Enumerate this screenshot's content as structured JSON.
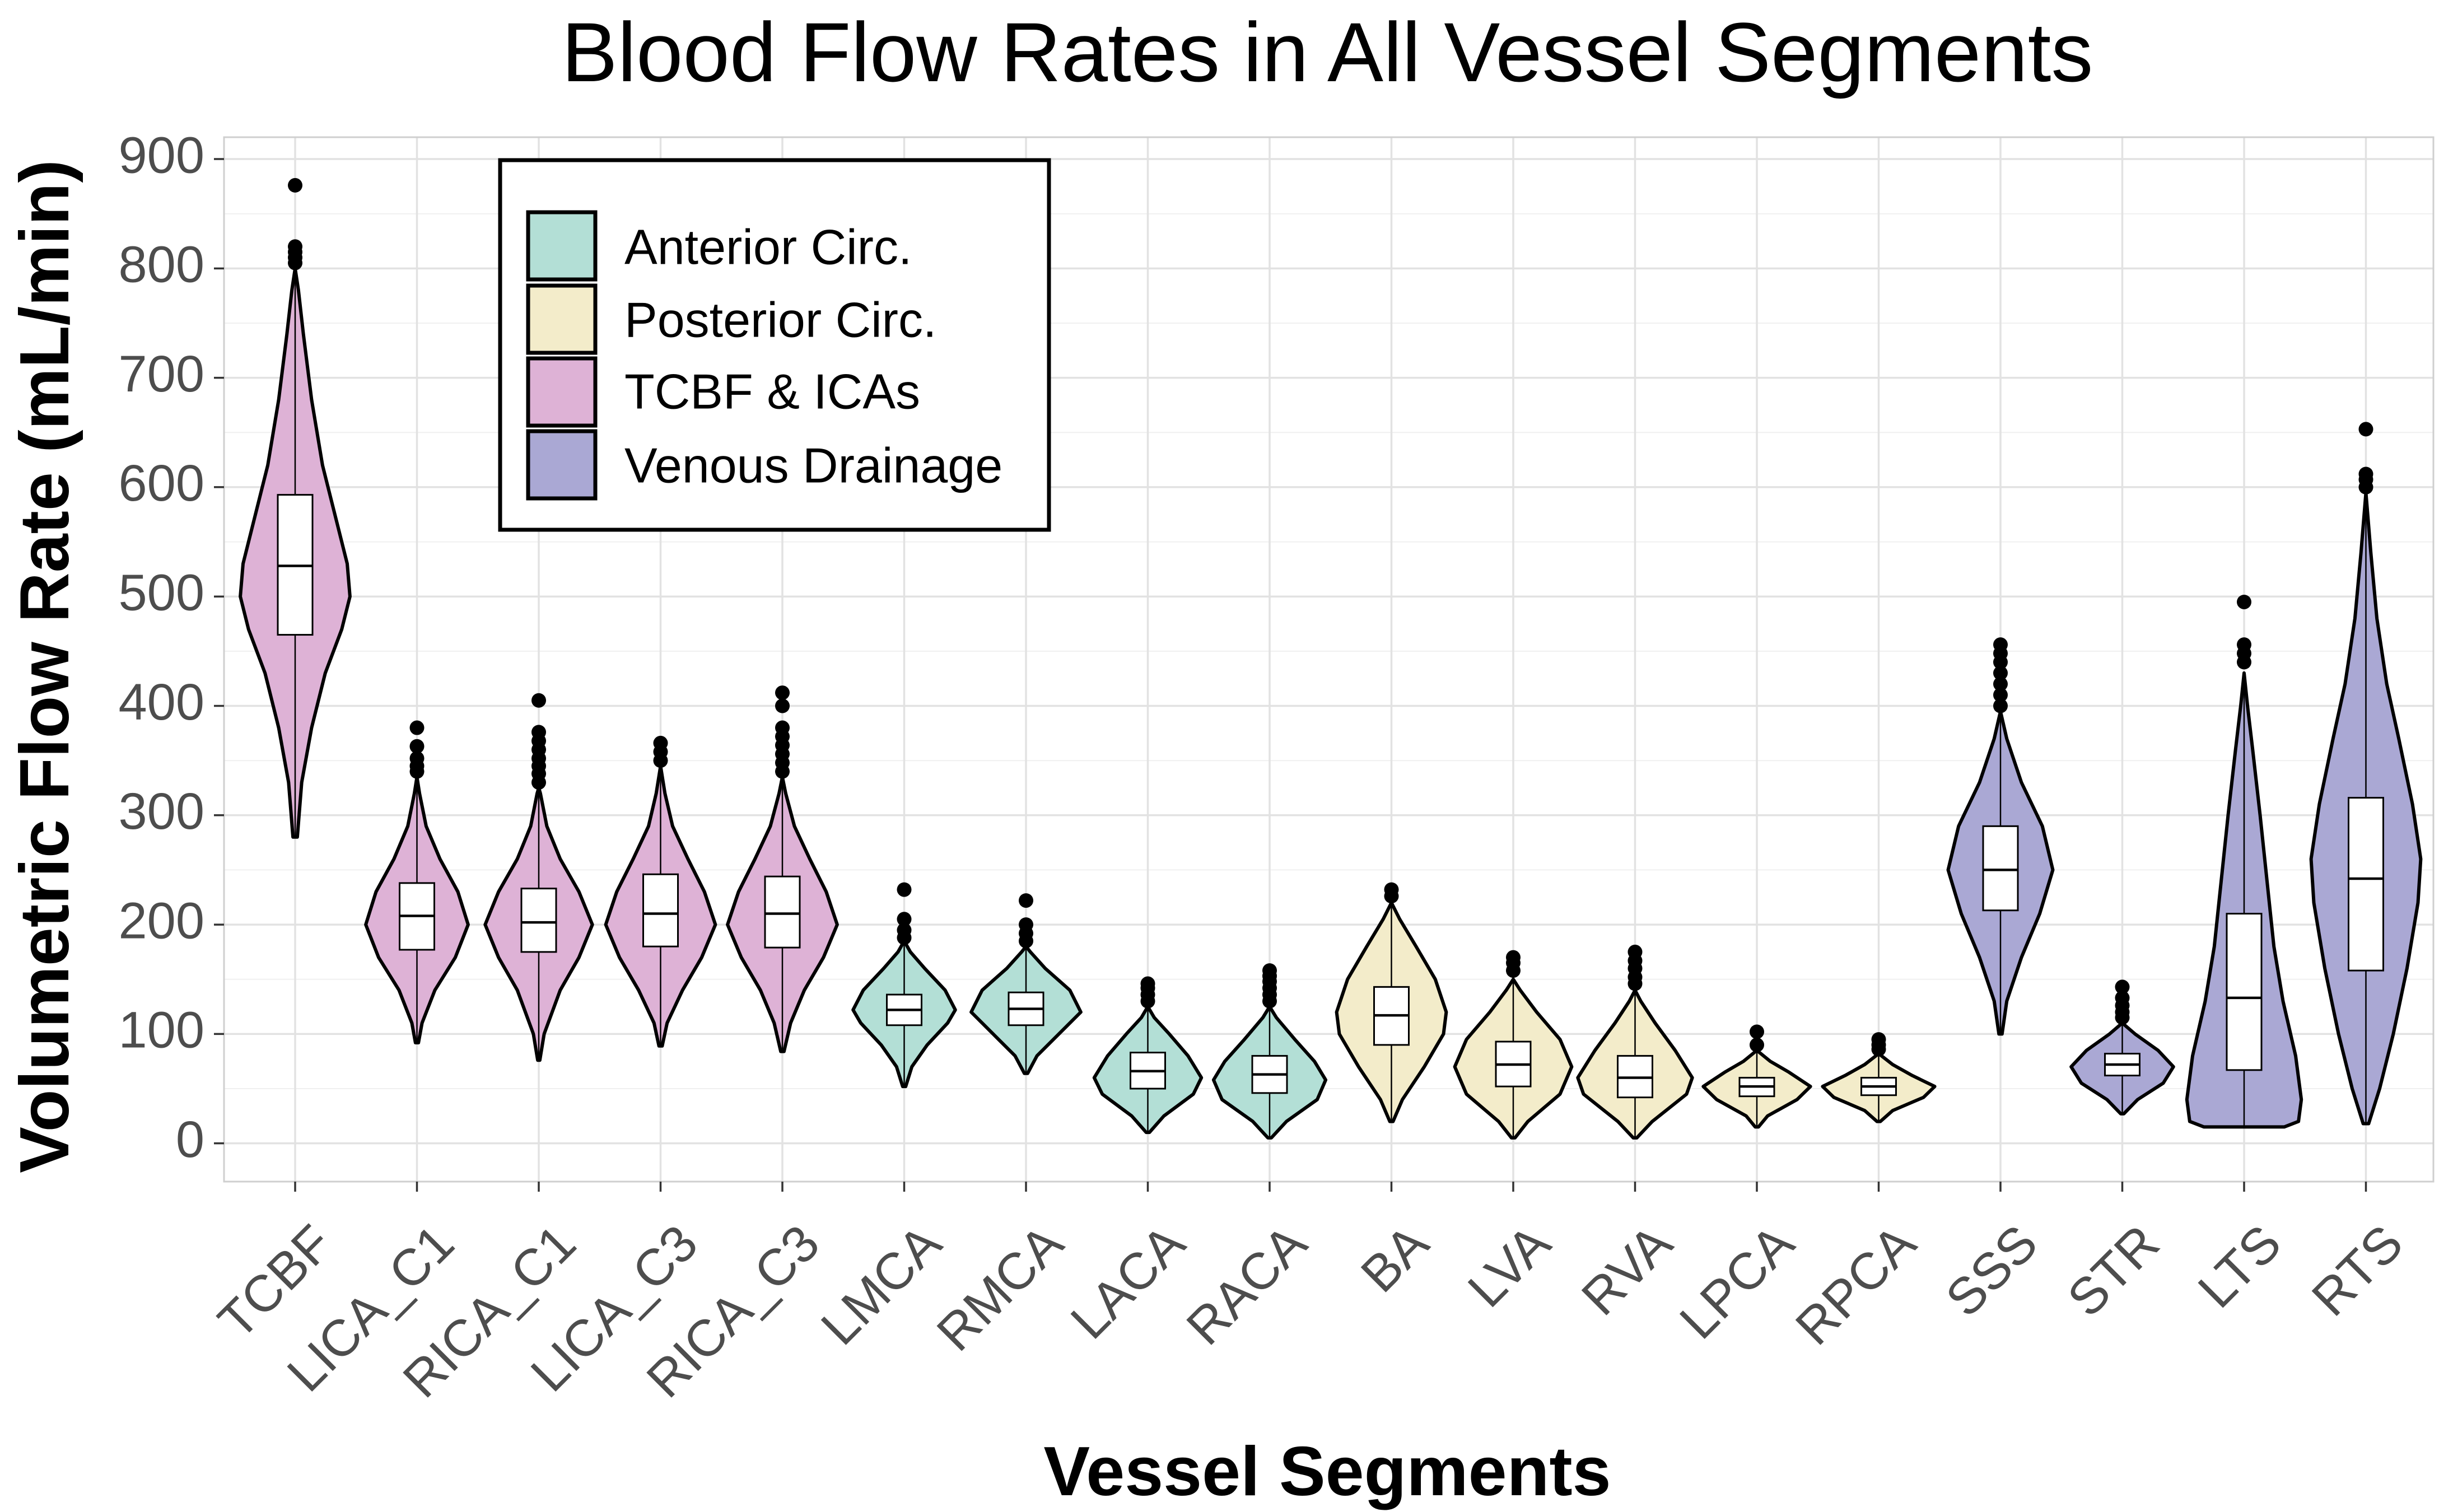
{
  "chart_data": {
    "type": "violin",
    "title": "Blood Flow Rates in All Vessel Segments",
    "xlabel": "Vessel Segments",
    "ylabel": "Volumetric Flow Rate (mL/min)",
    "ylim": [
      -35,
      920
    ],
    "yticks": [
      0,
      100,
      200,
      300,
      400,
      500,
      600,
      700,
      800,
      900
    ],
    "grid": true,
    "legend_position": "top-left",
    "legend": [
      {
        "label": "Anterior Circ.",
        "color": "#b3dfd6"
      },
      {
        "label": "Posterior Circ.",
        "color": "#f3ecca"
      },
      {
        "label": "TCBF & ICAs",
        "color": "#deb2d6"
      },
      {
        "label": "Venous Drainage",
        "color": "#aaa8d4"
      }
    ],
    "categories": [
      "TCBF",
      "LICA_C1",
      "RICA_C1",
      "LICA_C3",
      "RICA_C3",
      "LMCA",
      "RMCA",
      "LACA",
      "RACA",
      "BA",
      "LVA",
      "RVA",
      "LPCA",
      "RPCA",
      "SSS",
      "STR",
      "LTS",
      "RTS"
    ],
    "series": [
      {
        "category": "TCBF",
        "group": "TCBF & ICAs",
        "min": 280,
        "max": 800,
        "q1": 465,
        "median": 528,
        "q3": 593,
        "halfwidth": 0.45,
        "shape": [
          [
            280,
            0.04
          ],
          [
            330,
            0.12
          ],
          [
            380,
            0.3
          ],
          [
            430,
            0.55
          ],
          [
            470,
            0.85
          ],
          [
            500,
            1.0
          ],
          [
            530,
            0.95
          ],
          [
            570,
            0.75
          ],
          [
            620,
            0.5
          ],
          [
            680,
            0.3
          ],
          [
            740,
            0.15
          ],
          [
            780,
            0.06
          ],
          [
            800,
            0.0
          ]
        ],
        "outliers": [
          805,
          810,
          815,
          820,
          876
        ]
      },
      {
        "category": "LICA_C1",
        "group": "TCBF & ICAs",
        "min": 92,
        "max": 335,
        "q1": 177,
        "median": 208,
        "q3": 238,
        "halfwidth": 0.42,
        "shape": [
          [
            92,
            0.03
          ],
          [
            110,
            0.1
          ],
          [
            140,
            0.35
          ],
          [
            170,
            0.75
          ],
          [
            200,
            1.0
          ],
          [
            230,
            0.8
          ],
          [
            260,
            0.45
          ],
          [
            290,
            0.18
          ],
          [
            320,
            0.05
          ],
          [
            335,
            0.0
          ]
        ],
        "outliers": [
          340,
          345,
          352,
          363,
          380
        ]
      },
      {
        "category": "RICA_C1",
        "group": "TCBF & ICAs",
        "min": 76,
        "max": 325,
        "q1": 175,
        "median": 202,
        "q3": 233,
        "halfwidth": 0.44,
        "shape": [
          [
            76,
            0.02
          ],
          [
            100,
            0.1
          ],
          [
            140,
            0.4
          ],
          [
            170,
            0.75
          ],
          [
            200,
            1.0
          ],
          [
            230,
            0.75
          ],
          [
            260,
            0.4
          ],
          [
            290,
            0.15
          ],
          [
            320,
            0.03
          ],
          [
            325,
            0.0
          ]
        ],
        "outliers": [
          330,
          338,
          345,
          352,
          360,
          368,
          376,
          405
        ]
      },
      {
        "category": "LICA_C3",
        "group": "TCBF & ICAs",
        "min": 89,
        "max": 345,
        "q1": 180,
        "median": 210,
        "q3": 246,
        "halfwidth": 0.45,
        "shape": [
          [
            89,
            0.03
          ],
          [
            110,
            0.12
          ],
          [
            140,
            0.4
          ],
          [
            170,
            0.75
          ],
          [
            200,
            1.0
          ],
          [
            230,
            0.8
          ],
          [
            260,
            0.5
          ],
          [
            290,
            0.22
          ],
          [
            320,
            0.08
          ],
          [
            345,
            0.0
          ]
        ],
        "outliers": [
          350,
          358,
          366
        ]
      },
      {
        "category": "RICA_C3",
        "group": "TCBF & ICAs",
        "min": 84,
        "max": 335,
        "q1": 179,
        "median": 210,
        "q3": 244,
        "halfwidth": 0.45,
        "shape": [
          [
            84,
            0.03
          ],
          [
            110,
            0.15
          ],
          [
            140,
            0.4
          ],
          [
            170,
            0.75
          ],
          [
            200,
            1.0
          ],
          [
            230,
            0.8
          ],
          [
            260,
            0.5
          ],
          [
            290,
            0.22
          ],
          [
            320,
            0.06
          ],
          [
            335,
            0.0
          ]
        ],
        "outliers": [
          340,
          348,
          356,
          364,
          372,
          380,
          400,
          412
        ]
      },
      {
        "category": "LMCA",
        "group": "Anterior Circ.",
        "min": 52,
        "max": 185,
        "q1": 108,
        "median": 122,
        "q3": 136,
        "halfwidth": 0.42,
        "shape": [
          [
            52,
            0.03
          ],
          [
            70,
            0.15
          ],
          [
            90,
            0.45
          ],
          [
            110,
            0.85
          ],
          [
            122,
            1.0
          ],
          [
            140,
            0.8
          ],
          [
            160,
            0.4
          ],
          [
            175,
            0.12
          ],
          [
            185,
            0.0
          ]
        ],
        "outliers": [
          188,
          195,
          205,
          232
        ]
      },
      {
        "category": "RMCA",
        "group": "Anterior Circ.",
        "min": 64,
        "max": 180,
        "q1": 108,
        "median": 123,
        "q3": 138,
        "halfwidth": 0.45,
        "shape": [
          [
            64,
            0.03
          ],
          [
            80,
            0.2
          ],
          [
            100,
            0.6
          ],
          [
            120,
            1.0
          ],
          [
            140,
            0.8
          ],
          [
            160,
            0.35
          ],
          [
            175,
            0.08
          ],
          [
            180,
            0.0
          ]
        ],
        "outliers": [
          185,
          192,
          200,
          222
        ]
      },
      {
        "category": "LACA",
        "group": "Anterior Circ.",
        "min": 10,
        "max": 125,
        "q1": 50,
        "median": 66,
        "q3": 83,
        "halfwidth": 0.44,
        "shape": [
          [
            10,
            0.03
          ],
          [
            25,
            0.3
          ],
          [
            45,
            0.85
          ],
          [
            60,
            1.0
          ],
          [
            80,
            0.75
          ],
          [
            100,
            0.4
          ],
          [
            115,
            0.12
          ],
          [
            125,
            0.0
          ]
        ],
        "outliers": [
          130,
          136,
          142,
          146
        ]
      },
      {
        "category": "RACA",
        "group": "Anterior Circ.",
        "min": 5,
        "max": 125,
        "q1": 46,
        "median": 63,
        "q3": 80,
        "halfwidth": 0.46,
        "shape": [
          [
            5,
            0.03
          ],
          [
            20,
            0.3
          ],
          [
            40,
            0.85
          ],
          [
            58,
            1.0
          ],
          [
            75,
            0.8
          ],
          [
            95,
            0.45
          ],
          [
            115,
            0.12
          ],
          [
            125,
            0.0
          ]
        ],
        "outliers": [
          130,
          136,
          142,
          148,
          153,
          158
        ]
      },
      {
        "category": "BA",
        "group": "Posterior Circ.",
        "min": 20,
        "max": 220,
        "q1": 90,
        "median": 117,
        "q3": 143,
        "halfwidth": 0.45,
        "shape": [
          [
            20,
            0.03
          ],
          [
            40,
            0.2
          ],
          [
            70,
            0.6
          ],
          [
            100,
            0.95
          ],
          [
            120,
            1.0
          ],
          [
            150,
            0.8
          ],
          [
            180,
            0.45
          ],
          [
            205,
            0.15
          ],
          [
            220,
            0.0
          ]
        ],
        "outliers": [
          226,
          232
        ]
      },
      {
        "category": "LVA",
        "group": "Posterior Circ.",
        "min": 5,
        "max": 150,
        "q1": 52,
        "median": 72,
        "q3": 93,
        "halfwidth": 0.48,
        "shape": [
          [
            5,
            0.03
          ],
          [
            20,
            0.25
          ],
          [
            45,
            0.8
          ],
          [
            70,
            1.0
          ],
          [
            95,
            0.8
          ],
          [
            120,
            0.4
          ],
          [
            140,
            0.12
          ],
          [
            150,
            0.0
          ]
        ],
        "outliers": [
          158,
          165,
          170
        ]
      },
      {
        "category": "RVA",
        "group": "Posterior Circ.",
        "min": 5,
        "max": 140,
        "q1": 42,
        "median": 60,
        "q3": 80,
        "halfwidth": 0.47,
        "shape": [
          [
            5,
            0.03
          ],
          [
            20,
            0.3
          ],
          [
            45,
            0.9
          ],
          [
            60,
            1.0
          ],
          [
            85,
            0.7
          ],
          [
            110,
            0.35
          ],
          [
            130,
            0.1
          ],
          [
            140,
            0.0
          ]
        ],
        "outliers": [
          146,
          152,
          160,
          167,
          175
        ]
      },
      {
        "category": "LPCA",
        "group": "Posterior Circ.",
        "min": 15,
        "max": 85,
        "q1": 43,
        "median": 52,
        "q3": 60,
        "halfwidth": 0.44,
        "shape": [
          [
            15,
            0.03
          ],
          [
            25,
            0.2
          ],
          [
            40,
            0.75
          ],
          [
            52,
            1.0
          ],
          [
            65,
            0.6
          ],
          [
            75,
            0.25
          ],
          [
            85,
            0.0
          ]
        ],
        "outliers": [
          90,
          102
        ]
      },
      {
        "category": "RPCA",
        "group": "Posterior Circ.",
        "min": 20,
        "max": 82,
        "q1": 44,
        "median": 52,
        "q3": 60,
        "halfwidth": 0.46,
        "shape": [
          [
            20,
            0.03
          ],
          [
            30,
            0.25
          ],
          [
            42,
            0.8
          ],
          [
            52,
            1.0
          ],
          [
            62,
            0.6
          ],
          [
            72,
            0.25
          ],
          [
            82,
            0.0
          ]
        ],
        "outliers": [
          86,
          90,
          95
        ]
      },
      {
        "category": "SSS",
        "group": "Venous Drainage",
        "min": 100,
        "max": 395,
        "q1": 213,
        "median": 250,
        "q3": 290,
        "halfwidth": 0.43,
        "shape": [
          [
            100,
            0.03
          ],
          [
            130,
            0.12
          ],
          [
            170,
            0.4
          ],
          [
            210,
            0.75
          ],
          [
            250,
            1.0
          ],
          [
            290,
            0.8
          ],
          [
            330,
            0.4
          ],
          [
            370,
            0.12
          ],
          [
            395,
            0.0
          ]
        ],
        "outliers": [
          400,
          410,
          420,
          430,
          440,
          448,
          456
        ]
      },
      {
        "category": "STR",
        "group": "Venous Drainage",
        "min": 27,
        "max": 110,
        "q1": 62,
        "median": 72,
        "q3": 82,
        "halfwidth": 0.42,
        "shape": [
          [
            27,
            0.03
          ],
          [
            40,
            0.3
          ],
          [
            55,
            0.8
          ],
          [
            70,
            1.0
          ],
          [
            85,
            0.7
          ],
          [
            100,
            0.25
          ],
          [
            110,
            0.0
          ]
        ],
        "outliers": [
          115,
          120,
          126,
          133,
          143
        ]
      },
      {
        "category": "LTS",
        "group": "Venous Drainage",
        "min": 15,
        "max": 430,
        "q1": 67,
        "median": 133,
        "q3": 210,
        "halfwidth": 0.47,
        "shape": [
          [
            15,
            0.7
          ],
          [
            20,
            0.95
          ],
          [
            40,
            1.0
          ],
          [
            80,
            0.9
          ],
          [
            130,
            0.68
          ],
          [
            180,
            0.52
          ],
          [
            240,
            0.4
          ],
          [
            300,
            0.28
          ],
          [
            360,
            0.15
          ],
          [
            400,
            0.06
          ],
          [
            430,
            0.0
          ]
        ],
        "outliers": [
          440,
          448,
          456,
          495
        ]
      },
      {
        "category": "RTS",
        "group": "Venous Drainage",
        "min": 18,
        "max": 595,
        "q1": 158,
        "median": 242,
        "q3": 316,
        "halfwidth": 0.45,
        "shape": [
          [
            18,
            0.05
          ],
          [
            50,
            0.25
          ],
          [
            100,
            0.5
          ],
          [
            160,
            0.75
          ],
          [
            220,
            0.95
          ],
          [
            260,
            1.0
          ],
          [
            310,
            0.85
          ],
          [
            370,
            0.6
          ],
          [
            420,
            0.38
          ],
          [
            480,
            0.2
          ],
          [
            540,
            0.09
          ],
          [
            595,
            0.0
          ]
        ],
        "outliers": [
          600,
          607,
          612,
          653
        ]
      }
    ]
  }
}
